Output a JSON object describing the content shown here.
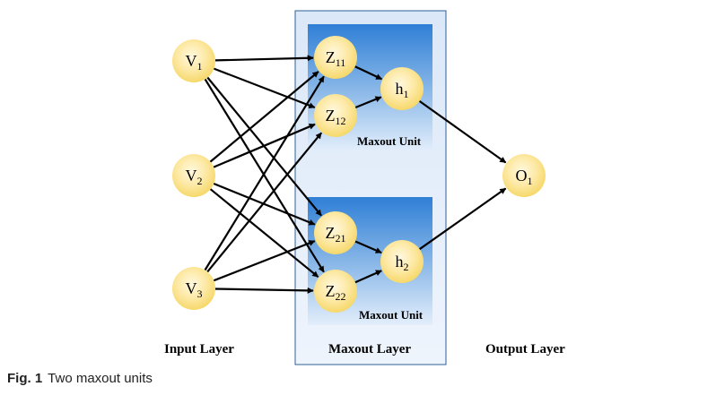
{
  "layers": {
    "input_label": "Input Layer",
    "maxout_label": "Maxout Layer",
    "output_label": "Output Layer"
  },
  "units": [
    {
      "label": "Maxout Unit"
    },
    {
      "label": "Maxout Unit"
    }
  ],
  "nodes": {
    "v1": {
      "base": "V",
      "sub": "1"
    },
    "v2": {
      "base": "V",
      "sub": "2"
    },
    "v3": {
      "base": "V",
      "sub": "3"
    },
    "z11": {
      "base": "Z",
      "sub": "11"
    },
    "z12": {
      "base": "Z",
      "sub": "12"
    },
    "z21": {
      "base": "Z",
      "sub": "21"
    },
    "z22": {
      "base": "Z",
      "sub": "22"
    },
    "h1": {
      "base": "h",
      "sub": "1"
    },
    "h2": {
      "base": "h",
      "sub": "2"
    },
    "o1": {
      "base": "O",
      "sub": "1"
    }
  },
  "caption": {
    "label": "Fig. 1",
    "text": "Two maxout units"
  },
  "colors": {
    "node_fill": "#fde9a6",
    "node_edge": "#f6d86a",
    "unit_box_top": "#2f7fd6",
    "unit_box_bottom": "#dce9f7",
    "layer_box": "#e3eefb",
    "layer_border": "#2d5f96",
    "arrow": "#000000"
  }
}
